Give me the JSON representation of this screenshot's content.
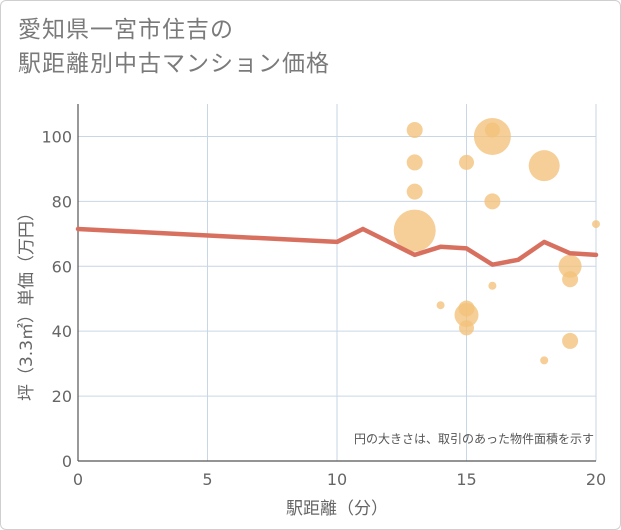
{
  "title_line1": "愛知県一宮市住吉の",
  "title_line2": "駅距離別中古マンション価格",
  "chart_data": {
    "type": "scatter",
    "title": "愛知県一宮市住吉の 駅距離別中古マンション価格",
    "xlabel": "駅距離（分）",
    "ylabel": "坪（3.3㎡）単価（万円）",
    "xlim": [
      0,
      20
    ],
    "ylim": [
      0,
      110
    ],
    "x_ticks": [
      0,
      5,
      10,
      15,
      20
    ],
    "y_ticks": [
      0,
      20,
      40,
      60,
      80,
      100
    ],
    "grid": true,
    "note": "円の大きさは、取引のあった物件面積を示す",
    "line_color": "#d87060",
    "bubble_color": "#f2c27a",
    "line": {
      "x": [
        0,
        10,
        11,
        13,
        14,
        15,
        16,
        17,
        18,
        19,
        20
      ],
      "y": [
        71.5,
        67.5,
        71.5,
        63.5,
        66,
        65.5,
        60.5,
        62,
        67.5,
        64,
        63.5
      ]
    },
    "points": [
      {
        "x": 13,
        "y": 102,
        "s": 16
      },
      {
        "x": 13,
        "y": 92,
        "s": 16
      },
      {
        "x": 13,
        "y": 83,
        "s": 16
      },
      {
        "x": 13,
        "y": 71,
        "s": 42
      },
      {
        "x": 14,
        "y": 48,
        "s": 8
      },
      {
        "x": 15,
        "y": 92,
        "s": 15
      },
      {
        "x": 15,
        "y": 47,
        "s": 16
      },
      {
        "x": 15,
        "y": 45,
        "s": 24
      },
      {
        "x": 15,
        "y": 41,
        "s": 15
      },
      {
        "x": 16,
        "y": 100,
        "s": 37
      },
      {
        "x": 16,
        "y": 102,
        "s": 15
      },
      {
        "x": 16,
        "y": 80,
        "s": 16
      },
      {
        "x": 16,
        "y": 54,
        "s": 8
      },
      {
        "x": 18,
        "y": 91,
        "s": 31
      },
      {
        "x": 18,
        "y": 31,
        "s": 8
      },
      {
        "x": 19,
        "y": 60,
        "s": 23
      },
      {
        "x": 19,
        "y": 56,
        "s": 16
      },
      {
        "x": 19,
        "y": 37,
        "s": 16
      },
      {
        "x": 20,
        "y": 73,
        "s": 8
      }
    ]
  }
}
